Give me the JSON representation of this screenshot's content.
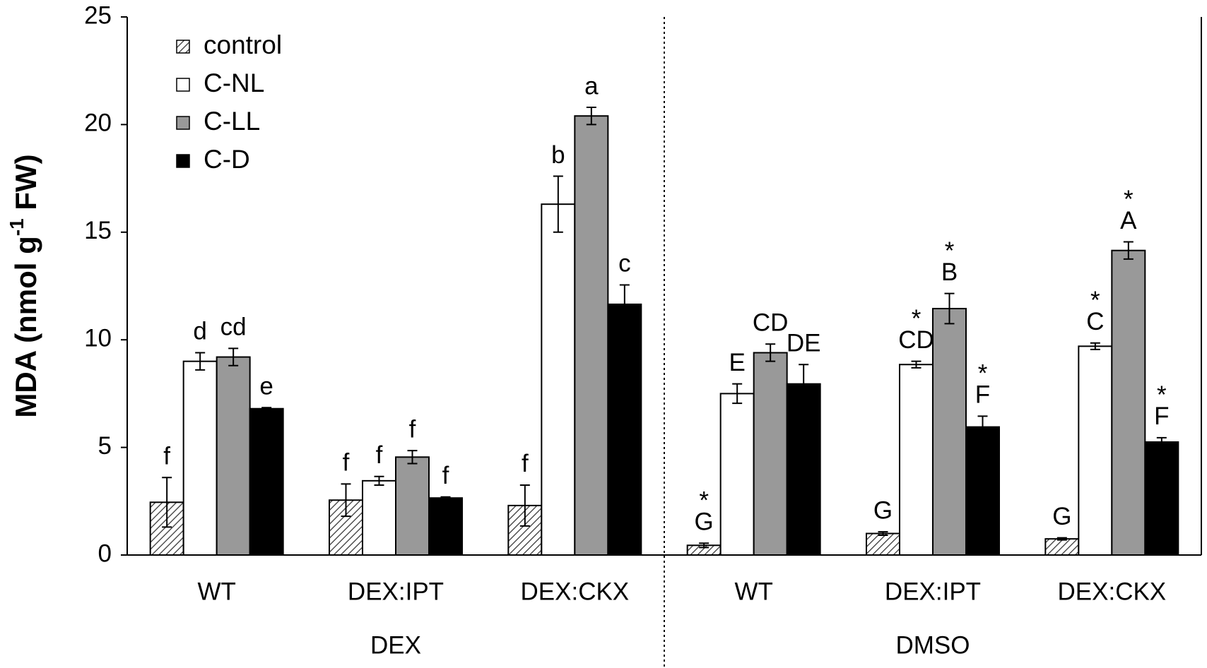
{
  "chart_data": {
    "type": "bar",
    "ylabel": {
      "text": "MDA (nmol g",
      "sup": "-1",
      "after": " FW)"
    },
    "categories": [
      "WT",
      "DEX:IPT",
      "DEX:CKX",
      "WT",
      "DEX:IPT",
      "DEX:CKX"
    ],
    "groups": [
      {
        "label": "DEX",
        "size": 3
      },
      {
        "label": "DMSO",
        "size": 3
      }
    ],
    "ylim": [
      0,
      25
    ],
    "yticks": [
      0,
      5,
      10,
      15,
      20,
      25
    ],
    "grid": false,
    "legend": "top-left",
    "series": [
      {
        "name": "control",
        "color": "#333333",
        "pattern": "hatch",
        "values": [
          2.45,
          2.55,
          2.3,
          0.45,
          1.0,
          0.75
        ],
        "errors": [
          1.15,
          0.75,
          0.95,
          0.1,
          0.08,
          0.05
        ],
        "letters": [
          "f",
          "f",
          "f",
          "G",
          "G",
          "G"
        ],
        "stars": [
          null,
          null,
          null,
          "*",
          null,
          null
        ]
      },
      {
        "name": "C-NL",
        "color": "#ffffff",
        "values": [
          9.0,
          3.45,
          16.3,
          7.5,
          8.85,
          9.7
        ],
        "errors": [
          0.4,
          0.2,
          1.3,
          0.45,
          0.15,
          0.15
        ],
        "letters": [
          "d",
          "f",
          "b",
          "E",
          "CD",
          "C"
        ],
        "stars": [
          null,
          null,
          null,
          null,
          "*",
          "*"
        ]
      },
      {
        "name": "C-LL",
        "color": "#999999",
        "values": [
          9.2,
          4.55,
          20.4,
          9.4,
          11.45,
          14.15
        ],
        "errors": [
          0.4,
          0.3,
          0.4,
          0.4,
          0.7,
          0.4
        ],
        "letters": [
          "cd",
          "f",
          "a",
          "CD",
          "B",
          "A"
        ],
        "stars": [
          null,
          null,
          null,
          null,
          "*",
          "*"
        ]
      },
      {
        "name": "C-D",
        "color": "#000000",
        "values": [
          6.8,
          2.65,
          11.65,
          7.95,
          5.95,
          5.25
        ],
        "errors": [
          0.05,
          0.05,
          0.9,
          0.9,
          0.5,
          0.2
        ],
        "letters": [
          "e",
          "f",
          "c",
          "DE",
          "F",
          "F"
        ],
        "stars": [
          null,
          null,
          null,
          null,
          "*",
          "*"
        ]
      }
    ]
  }
}
